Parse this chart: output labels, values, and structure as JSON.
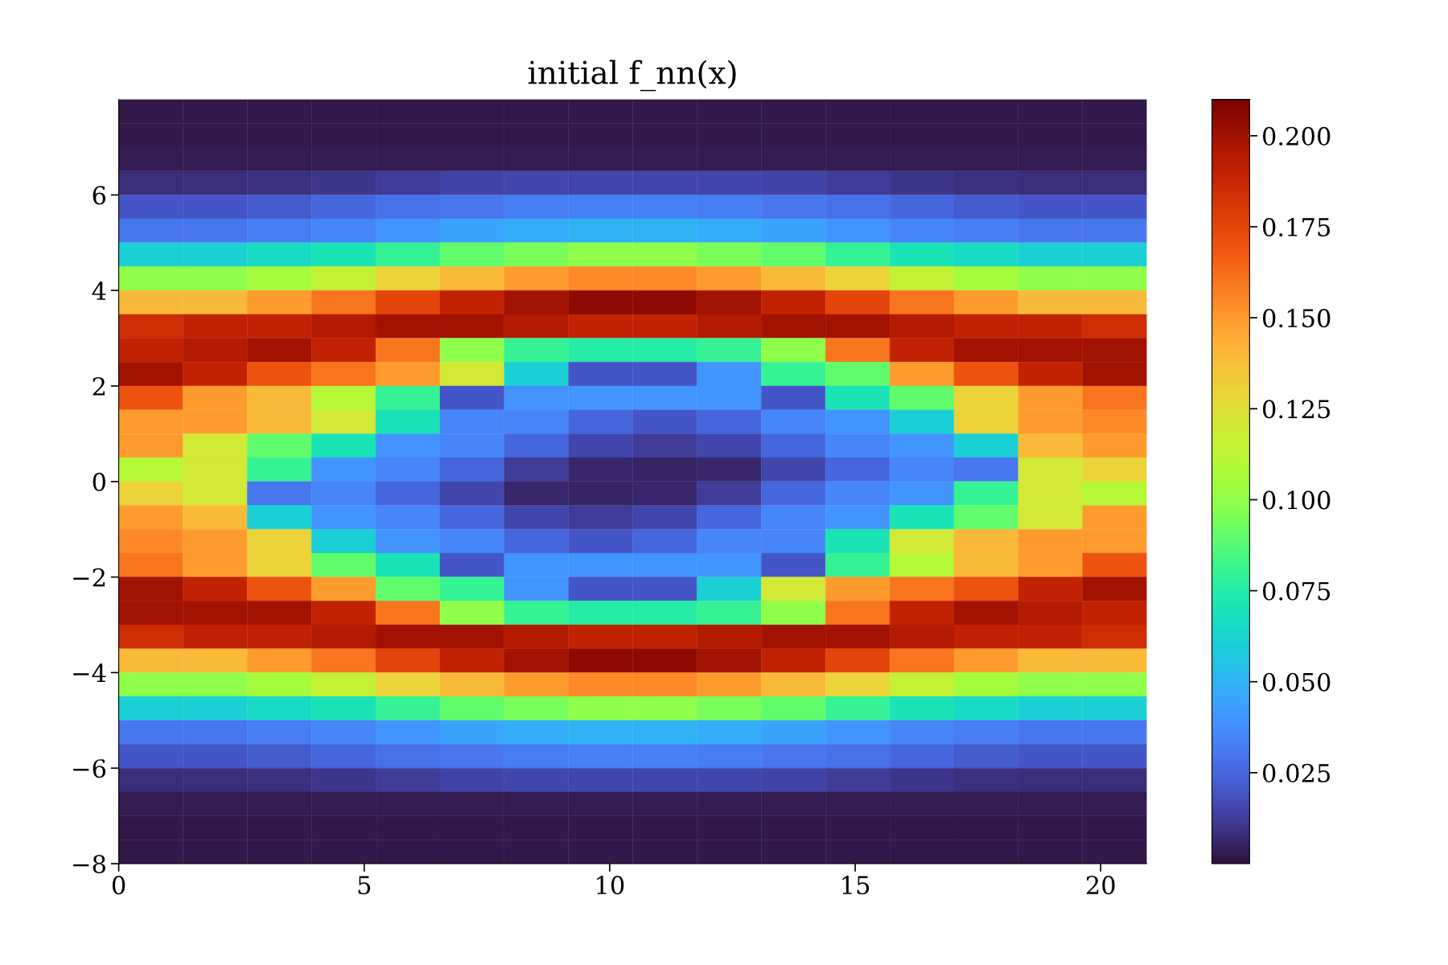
{
  "chart_data": {
    "type": "heatmap",
    "title": "initial f_nn(x)",
    "xlim": [
      0,
      20.94
    ],
    "xticks": [
      0,
      5,
      10,
      15,
      20
    ],
    "ylim": [
      -8,
      8
    ],
    "yticks": [
      -8,
      -6,
      -4,
      -2,
      0,
      2,
      4,
      6
    ],
    "clim": [
      0,
      0.21
    ],
    "cticks": [
      {
        "value": 0.025,
        "label": "0.025"
      },
      {
        "value": 0.05,
        "label": "0.050"
      },
      {
        "value": 0.075,
        "label": "0.075"
      },
      {
        "value": 0.1,
        "label": "0.100"
      },
      {
        "value": 0.125,
        "label": "0.125"
      },
      {
        "value": 0.15,
        "label": "0.150"
      },
      {
        "value": 0.175,
        "label": "0.175"
      },
      {
        "value": 0.2,
        "label": "0.200"
      }
    ],
    "cells": [
      [
        0.002,
        0.002,
        0.002,
        0.002,
        0.002,
        0.002,
        0.002,
        0.002,
        0.002,
        0.002,
        0.002,
        0.002,
        0.002,
        0.002,
        0.002,
        0.002
      ],
      [
        0.002,
        0.002,
        0.002,
        0.002,
        0.002,
        0.002,
        0.002,
        0.002,
        0.002,
        0.002,
        0.002,
        0.002,
        0.002,
        0.002,
        0.002,
        0.002
      ],
      [
        0.003,
        0.003,
        0.003,
        0.003,
        0.003,
        0.003,
        0.003,
        0.003,
        0.003,
        0.003,
        0.003,
        0.003,
        0.003,
        0.003,
        0.003,
        0.003
      ],
      [
        0.008,
        0.008,
        0.009,
        0.01,
        0.012,
        0.014,
        0.015,
        0.015,
        0.015,
        0.015,
        0.014,
        0.012,
        0.01,
        0.009,
        0.008,
        0.008
      ],
      [
        0.02,
        0.02,
        0.022,
        0.025,
        0.028,
        0.03,
        0.032,
        0.033,
        0.033,
        0.032,
        0.03,
        0.028,
        0.025,
        0.022,
        0.02,
        0.02
      ],
      [
        0.03,
        0.03,
        0.032,
        0.035,
        0.04,
        0.045,
        0.048,
        0.05,
        0.05,
        0.048,
        0.045,
        0.04,
        0.035,
        0.032,
        0.03,
        0.03
      ],
      [
        0.06,
        0.06,
        0.065,
        0.07,
        0.08,
        0.09,
        0.095,
        0.1,
        0.1,
        0.095,
        0.09,
        0.08,
        0.07,
        0.065,
        0.06,
        0.06
      ],
      [
        0.1,
        0.1,
        0.105,
        0.115,
        0.13,
        0.14,
        0.15,
        0.155,
        0.155,
        0.15,
        0.14,
        0.13,
        0.115,
        0.105,
        0.1,
        0.1
      ],
      [
        0.14,
        0.14,
        0.15,
        0.16,
        0.175,
        0.19,
        0.2,
        0.205,
        0.205,
        0.2,
        0.19,
        0.175,
        0.16,
        0.15,
        0.14,
        0.14
      ],
      [
        0.185,
        0.19,
        0.19,
        0.195,
        0.2,
        0.2,
        0.195,
        0.19,
        0.19,
        0.195,
        0.2,
        0.2,
        0.195,
        0.19,
        0.19,
        0.185
      ],
      [
        0.19,
        0.195,
        0.2,
        0.19,
        0.16,
        0.1,
        0.08,
        0.075,
        0.075,
        0.08,
        0.1,
        0.16,
        0.19,
        0.2,
        0.2,
        0.2
      ],
      [
        0.2,
        0.19,
        0.17,
        0.16,
        0.15,
        0.12,
        0.06,
        0.02,
        0.02,
        0.04,
        0.08,
        0.09,
        0.15,
        0.17,
        0.19,
        0.2
      ],
      [
        0.17,
        0.15,
        0.14,
        0.11,
        0.08,
        0.02,
        0.04,
        0.04,
        0.04,
        0.04,
        0.02,
        0.07,
        0.09,
        0.13,
        0.15,
        0.16
      ],
      [
        0.15,
        0.15,
        0.14,
        0.12,
        0.07,
        0.035,
        0.035,
        0.025,
        0.02,
        0.025,
        0.035,
        0.04,
        0.06,
        0.13,
        0.15,
        0.155
      ],
      [
        0.15,
        0.12,
        0.09,
        0.07,
        0.04,
        0.035,
        0.025,
        0.015,
        0.012,
        0.015,
        0.025,
        0.035,
        0.04,
        0.06,
        0.14,
        0.15
      ],
      [
        0.11,
        0.12,
        0.08,
        0.04,
        0.035,
        0.025,
        0.012,
        0.006,
        0.005,
        0.006,
        0.015,
        0.025,
        0.035,
        0.03,
        0.12,
        0.13
      ],
      [
        0.13,
        0.12,
        0.03,
        0.035,
        0.025,
        0.015,
        0.006,
        0.005,
        0.006,
        0.012,
        0.025,
        0.035,
        0.04,
        0.08,
        0.12,
        0.11
      ],
      [
        0.15,
        0.14,
        0.06,
        0.04,
        0.035,
        0.025,
        0.015,
        0.012,
        0.015,
        0.025,
        0.035,
        0.04,
        0.07,
        0.09,
        0.12,
        0.15
      ],
      [
        0.155,
        0.15,
        0.13,
        0.06,
        0.04,
        0.035,
        0.025,
        0.02,
        0.025,
        0.035,
        0.035,
        0.07,
        0.12,
        0.14,
        0.15,
        0.15
      ],
      [
        0.16,
        0.15,
        0.13,
        0.09,
        0.07,
        0.02,
        0.04,
        0.04,
        0.04,
        0.04,
        0.02,
        0.08,
        0.11,
        0.14,
        0.15,
        0.17
      ],
      [
        0.2,
        0.19,
        0.17,
        0.15,
        0.09,
        0.08,
        0.04,
        0.02,
        0.02,
        0.06,
        0.12,
        0.15,
        0.16,
        0.17,
        0.19,
        0.2
      ],
      [
        0.2,
        0.2,
        0.2,
        0.19,
        0.16,
        0.1,
        0.08,
        0.075,
        0.075,
        0.08,
        0.1,
        0.16,
        0.19,
        0.2,
        0.195,
        0.19
      ],
      [
        0.185,
        0.19,
        0.19,
        0.195,
        0.2,
        0.2,
        0.195,
        0.19,
        0.19,
        0.195,
        0.2,
        0.2,
        0.195,
        0.19,
        0.19,
        0.185
      ],
      [
        0.14,
        0.14,
        0.15,
        0.16,
        0.175,
        0.19,
        0.2,
        0.205,
        0.205,
        0.2,
        0.19,
        0.175,
        0.16,
        0.15,
        0.14,
        0.14
      ],
      [
        0.1,
        0.1,
        0.105,
        0.115,
        0.13,
        0.14,
        0.15,
        0.155,
        0.155,
        0.15,
        0.14,
        0.13,
        0.115,
        0.105,
        0.1,
        0.1
      ],
      [
        0.06,
        0.06,
        0.065,
        0.07,
        0.08,
        0.09,
        0.095,
        0.1,
        0.1,
        0.095,
        0.09,
        0.08,
        0.07,
        0.065,
        0.06,
        0.06
      ],
      [
        0.03,
        0.03,
        0.032,
        0.035,
        0.04,
        0.045,
        0.048,
        0.05,
        0.05,
        0.048,
        0.045,
        0.04,
        0.035,
        0.032,
        0.03,
        0.03
      ],
      [
        0.02,
        0.02,
        0.022,
        0.025,
        0.028,
        0.03,
        0.032,
        0.033,
        0.033,
        0.032,
        0.03,
        0.028,
        0.025,
        0.022,
        0.02,
        0.02
      ],
      [
        0.008,
        0.008,
        0.009,
        0.01,
        0.012,
        0.014,
        0.015,
        0.015,
        0.015,
        0.015,
        0.014,
        0.012,
        0.01,
        0.009,
        0.008,
        0.008
      ],
      [
        0.003,
        0.003,
        0.003,
        0.003,
        0.003,
        0.003,
        0.003,
        0.003,
        0.003,
        0.003,
        0.003,
        0.003,
        0.003,
        0.003,
        0.003,
        0.003
      ],
      [
        0.002,
        0.002,
        0.002,
        0.002,
        0.002,
        0.002,
        0.002,
        0.002,
        0.002,
        0.002,
        0.002,
        0.002,
        0.002,
        0.002,
        0.002,
        0.002
      ],
      [
        0.002,
        0.002,
        0.002,
        0.002,
        0.002,
        0.002,
        0.002,
        0.002,
        0.002,
        0.002,
        0.002,
        0.002,
        0.002,
        0.002,
        0.002,
        0.002
      ]
    ]
  }
}
